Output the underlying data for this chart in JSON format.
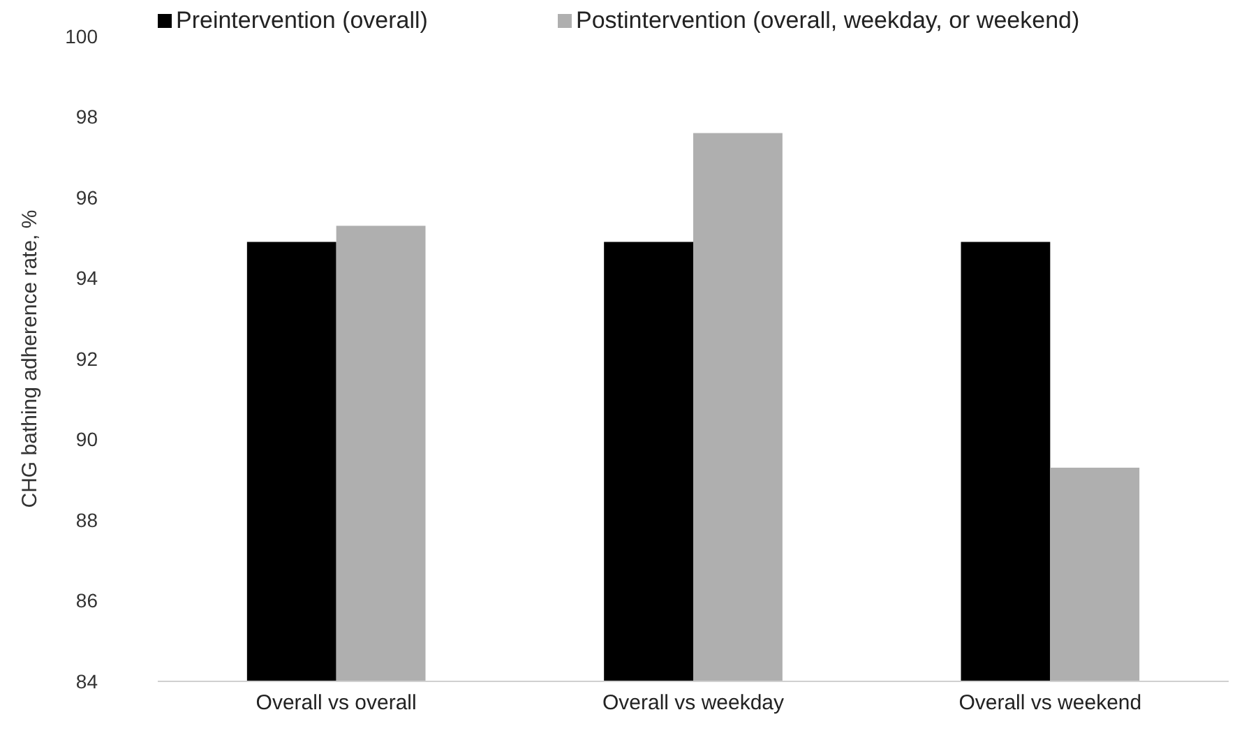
{
  "chart_data": {
    "type": "bar",
    "ylabel": "CHG bathing adherence rate, %",
    "categories": [
      "Overall vs overall",
      "Overall vs weekday",
      "Overall vs weekend"
    ],
    "series": [
      {
        "name": "Preintervention (overall)",
        "color": "#000000",
        "values": [
          94.9,
          94.9,
          94.9
        ]
      },
      {
        "name": "Postintervention (overall, weekday, or weekend)",
        "color": "#afafaf",
        "values": [
          95.3,
          97.6,
          89.3
        ]
      }
    ],
    "ylim": [
      84,
      100
    ],
    "yticks": [
      84,
      86,
      88,
      90,
      92,
      94,
      96,
      98,
      100
    ],
    "grid": false,
    "legend": "top"
  }
}
